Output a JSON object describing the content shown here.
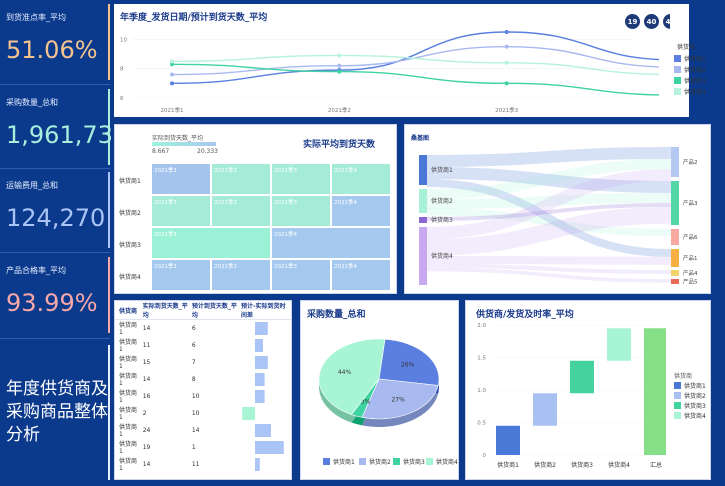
{
  "kpis": [
    {
      "label": "到货准点率_平均",
      "value": "51.06%",
      "color": "#f6c38f",
      "bar": "#f6c38f"
    },
    {
      "label": "采购数量_总和",
      "value": "1,961,732",
      "color": "#a8f0dc",
      "bar": "#a8f0dc"
    },
    {
      "label": "运输费用_总和",
      "value": "124,270",
      "color": "#a9c4f5",
      "bar": "#a9c4f5"
    },
    {
      "label": "产品合格率_平均",
      "value": "93.99%",
      "color": "#f7a8a8",
      "bar": "#f7a8a8"
    }
  ],
  "dashboard_title": "年度供货商及采购商品整体分析",
  "line_panel": {
    "title": "年季度_发货日期/预计到货天数_平均",
    "badges": [
      "19",
      "40",
      "47"
    ],
    "legend_title": "供货商",
    "legend": [
      "供货商1",
      "供货商2",
      "供货商3",
      "供货商4"
    ]
  },
  "heat_panel": {
    "title": "实际平均到货天数",
    "legend_label": "实际到货天数_平均",
    "legend_min": "8.667",
    "legend_max": "20.333",
    "rows": [
      "供货商1",
      "供货商2",
      "供货商3",
      "供货商4"
    ],
    "cells": [
      [
        "2021季1",
        "2021季2",
        "2021季3",
        "2021季4"
      ],
      [
        "2021季1",
        "2021季2",
        "2021季3",
        "2021季4"
      ],
      [
        "2021季1",
        "2021季2",
        "2021季4"
      ],
      [
        "2021季1",
        "2021季2",
        "2021季3",
        "2021季4"
      ]
    ]
  },
  "sankey_panel": {
    "title": "桑基图",
    "left": [
      "供货商1",
      "供货商2",
      "供货商3",
      "供货商4"
    ],
    "right": [
      "产品2",
      "产品3",
      "产品6",
      "产品1",
      "产品4",
      "产品5"
    ]
  },
  "table_panel": {
    "headers": [
      "供货商",
      "实际到货天数_平均",
      "预计到货天数_平均",
      "预计-实际到货时间差"
    ],
    "rows": [
      [
        "供货商1",
        "14",
        "6"
      ],
      [
        "供货商1",
        "11",
        "6"
      ],
      [
        "供货商1",
        "15",
        "7"
      ],
      [
        "供货商1",
        "14",
        "8"
      ],
      [
        "供货商1",
        "16",
        "10"
      ],
      [
        "供货商1",
        "2",
        "10"
      ],
      [
        "供货商1",
        "24",
        "14"
      ],
      [
        "供货商1",
        "19",
        "1"
      ],
      [
        "供货商1",
        "14",
        "11"
      ]
    ]
  },
  "pie_panel": {
    "title": "采购数量_总和",
    "legend": [
      "供货商1",
      "供货商2",
      "供货商3",
      "供货商4"
    ]
  },
  "wf_panel": {
    "title": "供货商/发货及时率_平均",
    "legend_title": "供货商",
    "legend": [
      "供货商1",
      "供货商2",
      "供货商3",
      "供货商4"
    ]
  },
  "chart_data": [
    {
      "type": "line",
      "x": [
        "2021季1",
        "2021季2",
        "2021季3",
        "2021季4"
      ],
      "ylim": [
        6,
        10.5
      ],
      "yticks": [
        "6",
        "8",
        "10"
      ],
      "series": [
        {
          "name": "供货商1",
          "values": [
            7.0,
            7.9,
            10.5,
            8.6
          ],
          "color": "#5b7fe0"
        },
        {
          "name": "供货商2",
          "values": [
            7.6,
            8.2,
            9.5,
            8.1
          ],
          "color": "#a8b9f0"
        },
        {
          "name": "供货商3",
          "values": [
            8.3,
            7.8,
            7.0,
            6.2
          ],
          "color": "#3ed3a0"
        },
        {
          "name": "供货商4",
          "values": [
            8.5,
            8.9,
            8.4,
            7.6
          ],
          "color": "#b6f3dc"
        }
      ]
    },
    {
      "type": "bar",
      "categories": [
        "供货商1",
        "供货商1",
        "供货商1",
        "供货商1",
        "供货商1",
        "供货商1",
        "供货商1",
        "供货商1",
        "供货商1"
      ],
      "values": [
        8,
        5,
        8,
        6,
        6,
        -8,
        10,
        18,
        3
      ]
    },
    {
      "type": "pie",
      "labels": [
        "供货商1",
        "供货商2",
        "供货商3",
        "供货商4"
      ],
      "values": [
        26,
        27,
        3,
        44
      ],
      "data_labels": [
        "26%",
        "27%",
        "3%",
        "44%"
      ],
      "colors": [
        "#5b7fe0",
        "#a8b9f0",
        "#3ed3a0",
        "#a8f5d6"
      ]
    },
    {
      "type": "bar",
      "categories": [
        "供货商1",
        "供货商2",
        "供货商3",
        "供货商4",
        "汇总"
      ],
      "values": [
        0.45,
        0.5,
        0.5,
        0.5,
        1.95
      ],
      "ylim": [
        0,
        2.0
      ],
      "yticks": [
        "0",
        "0.5",
        "1.0",
        "1.5",
        "2.0"
      ],
      "colors": [
        "#4a78d6",
        "#a8c0f2",
        "#44d39e",
        "#a8f5d6",
        "#86de86"
      ]
    }
  ]
}
